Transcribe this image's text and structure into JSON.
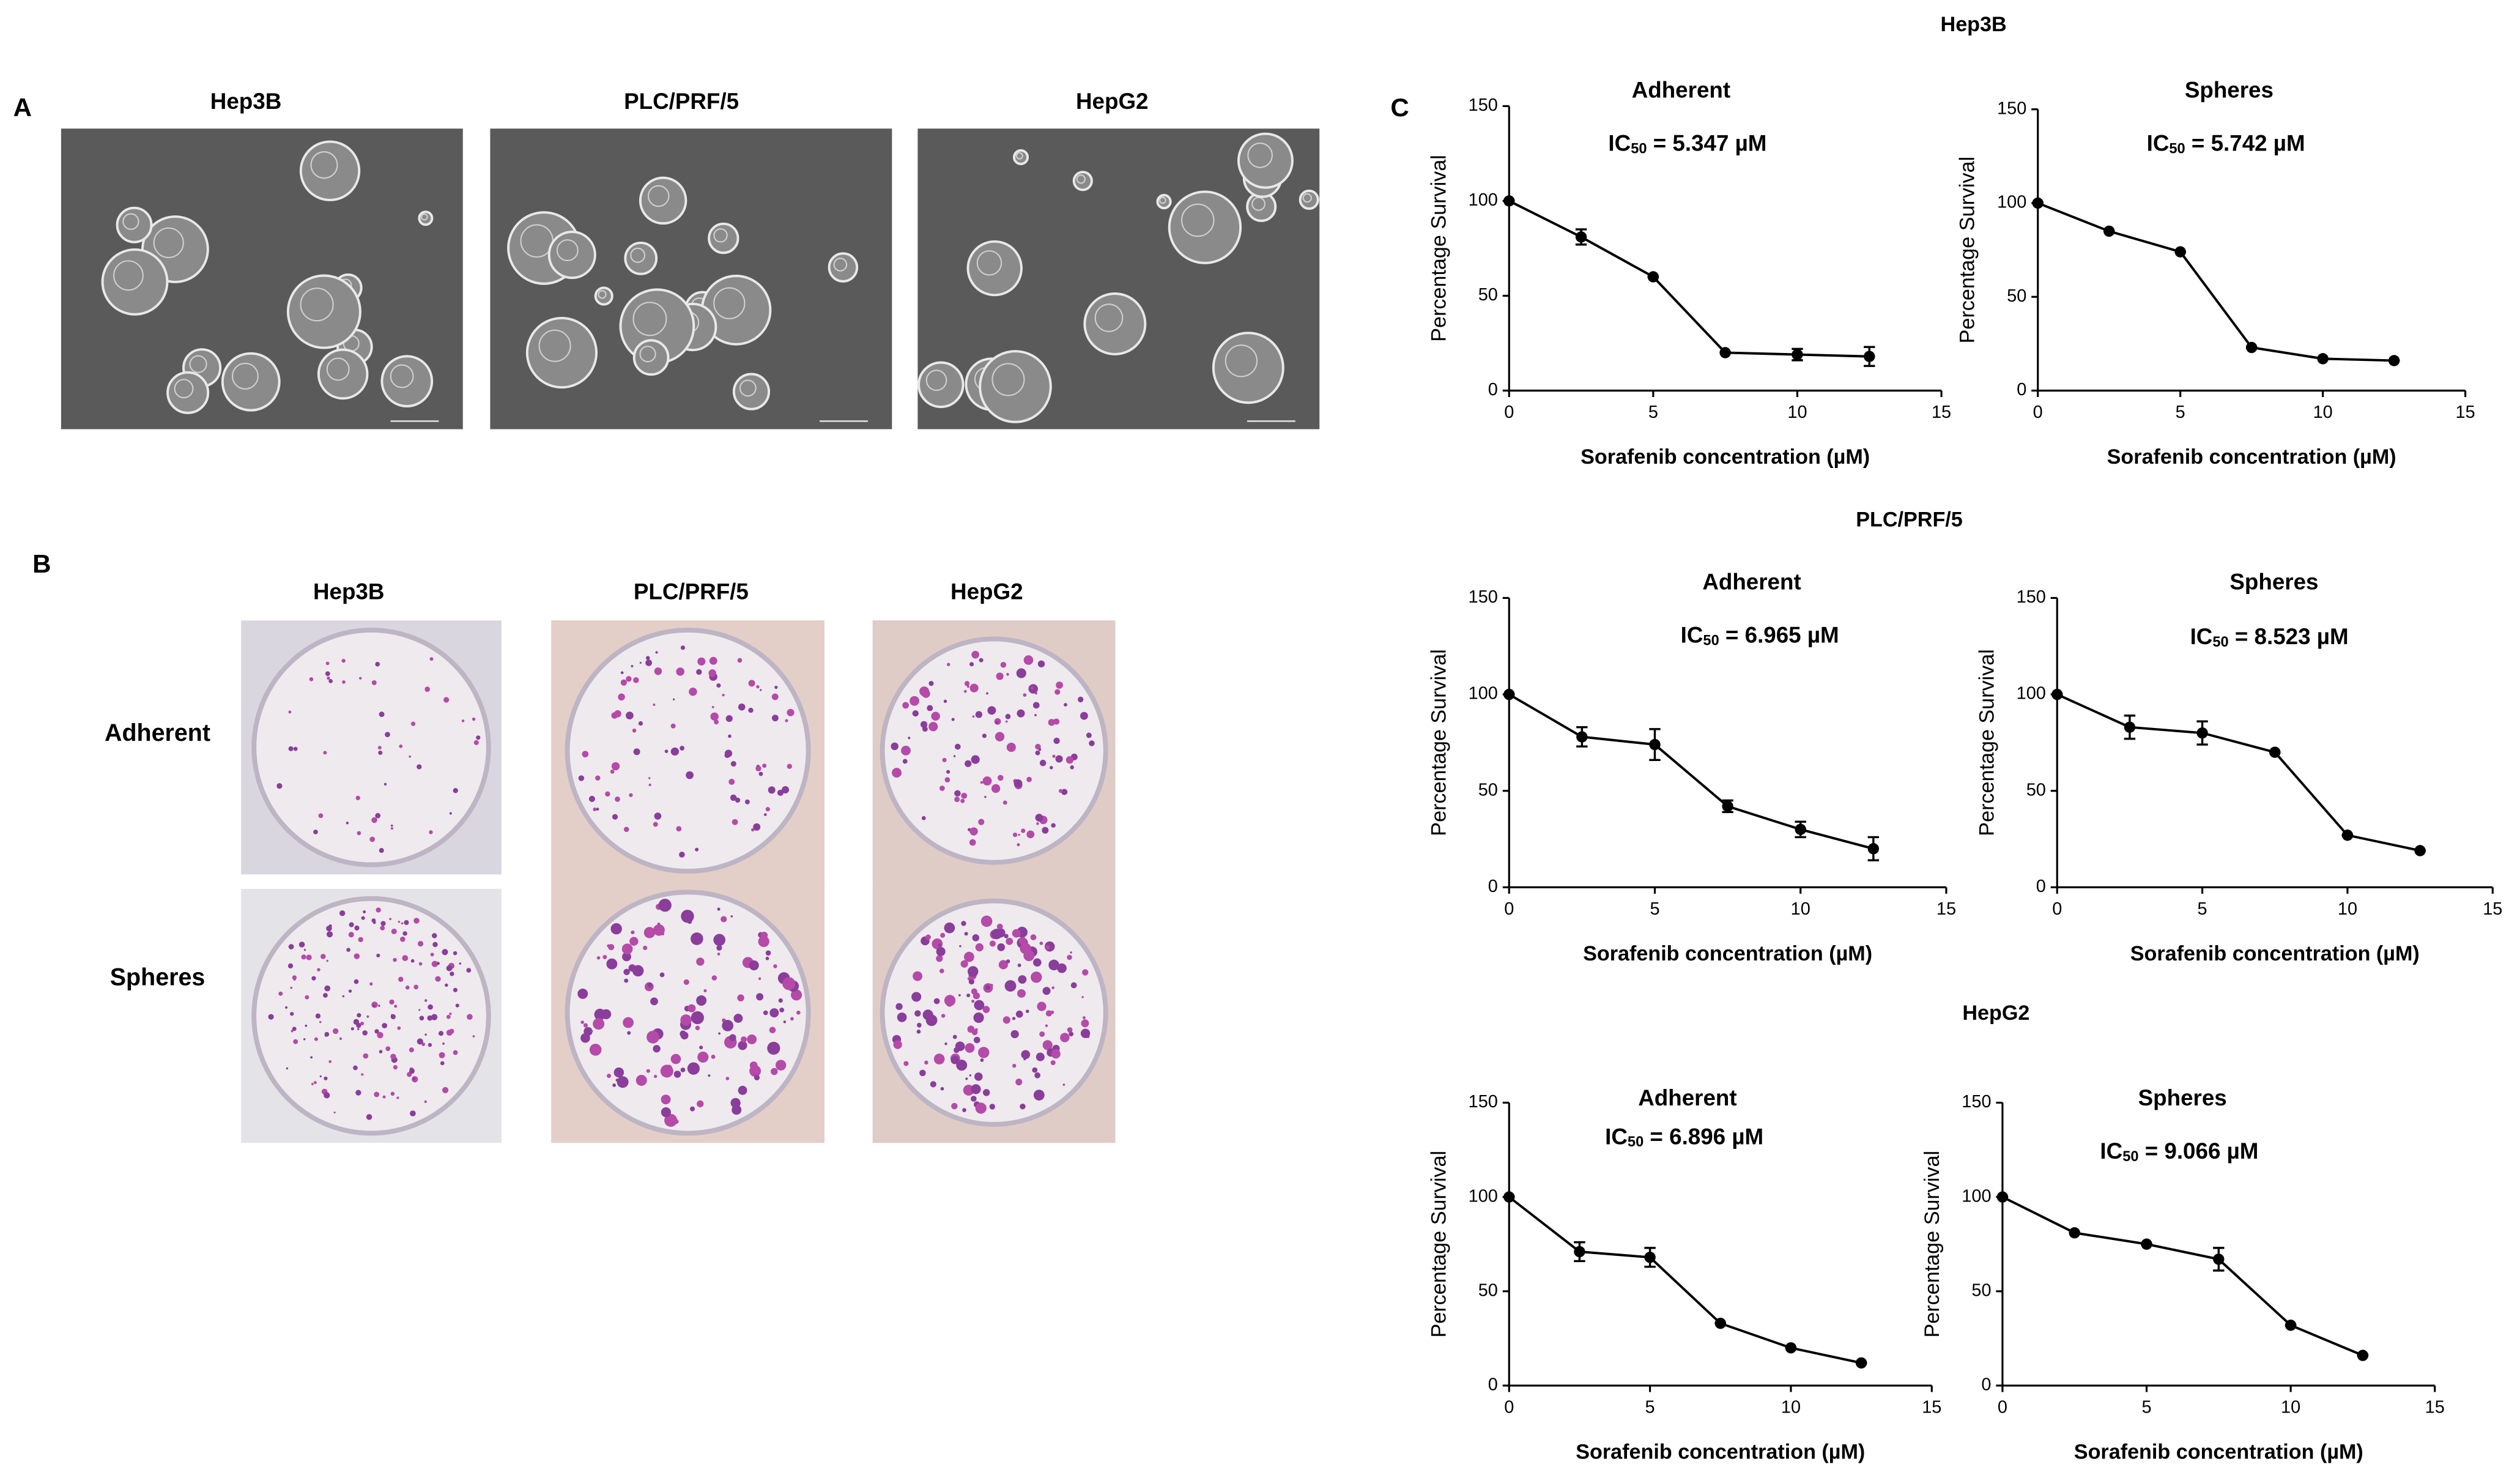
{
  "panels": {
    "A": {
      "label": "A",
      "images": [
        "Hep3B",
        "PLC/PRF/5",
        "HepG2"
      ]
    },
    "B": {
      "label": "B",
      "columns": [
        "Hep3B",
        "PLC/PRF/5",
        "HepG2"
      ],
      "rows": [
        "Adherent",
        "Spheres"
      ]
    },
    "C": {
      "label": "C",
      "groups": [
        "Hep3B",
        "PLC/PRF/5",
        "HepG2"
      ]
    }
  },
  "chart_data": [
    {
      "type": "line",
      "title": "Adherent",
      "annotation": [
        "IC",
        "50",
        " = 5.347 µM"
      ],
      "x_label": "Sorafenib concentration (µM)",
      "y_label": "Percentage Survival",
      "x": [
        0,
        2.5,
        5,
        7.5,
        10,
        12.5
      ],
      "values": [
        100,
        81,
        60,
        20,
        19,
        18
      ],
      "errors": [
        0,
        4,
        0,
        0,
        3,
        5
      ],
      "xlim": [
        0,
        15
      ],
      "xticks": [
        0,
        5,
        10,
        15
      ],
      "ylim": [
        0,
        150
      ],
      "yticks": [
        0,
        50,
        100,
        150
      ],
      "color": "#000000"
    },
    {
      "type": "line",
      "title": "Spheres",
      "annotation": [
        "IC",
        "50",
        " = 5.742 µM"
      ],
      "x_label": "Sorafenib concentration (µM)",
      "y_label": "Percentage Survival",
      "x": [
        0,
        2.5,
        5,
        7.5,
        10,
        12.5
      ],
      "values": [
        100,
        85,
        74,
        23,
        17,
        16
      ],
      "errors": [
        0,
        0,
        0,
        0,
        0,
        0
      ],
      "xlim": [
        0,
        15
      ],
      "xticks": [
        0,
        5,
        10,
        15
      ],
      "ylim": [
        0,
        150
      ],
      "yticks": [
        0,
        50,
        100,
        150
      ],
      "color": "#000000"
    },
    {
      "type": "line",
      "title": "Adherent",
      "annotation": [
        "IC",
        "50",
        " = 6.965 µM"
      ],
      "x_label": "Sorafenib concentration (µM)",
      "y_label": "Percentage Survival",
      "x": [
        0,
        2.5,
        5,
        7.5,
        10,
        12.5
      ],
      "values": [
        100,
        78,
        74,
        42,
        30,
        20
      ],
      "errors": [
        0,
        5,
        8,
        3,
        4,
        6
      ],
      "xlim": [
        0,
        15
      ],
      "xticks": [
        0,
        5,
        10,
        15
      ],
      "ylim": [
        0,
        150
      ],
      "yticks": [
        0,
        50,
        100,
        150
      ],
      "color": "#000000"
    },
    {
      "type": "line",
      "title": "Spheres",
      "annotation": [
        "IC",
        "50",
        " = 8.523 µM"
      ],
      "x_label": "Sorafenib concentration (µM)",
      "y_label": "Percentage Survival",
      "x": [
        0,
        2.5,
        5,
        7.5,
        10,
        12.5
      ],
      "values": [
        100,
        83,
        80,
        70,
        27,
        19
      ],
      "errors": [
        0,
        6,
        6,
        0,
        0,
        0
      ],
      "xlim": [
        0,
        15
      ],
      "xticks": [
        0,
        5,
        10,
        15
      ],
      "ylim": [
        0,
        150
      ],
      "yticks": [
        0,
        50,
        100,
        150
      ],
      "color": "#000000"
    },
    {
      "type": "line",
      "title": "Adherent",
      "annotation": [
        "IC",
        "50",
        " = 6.896 µM"
      ],
      "x_label": "Sorafenib concentration (µM)",
      "y_label": "Percentage Survival",
      "x": [
        0,
        2.5,
        5,
        7.5,
        10,
        12.5
      ],
      "values": [
        100,
        71,
        68,
        33,
        20,
        12
      ],
      "errors": [
        0,
        5,
        5,
        0,
        0,
        0
      ],
      "xlim": [
        0,
        15
      ],
      "xticks": [
        0,
        5,
        10,
        15
      ],
      "ylim": [
        0,
        150
      ],
      "yticks": [
        0,
        50,
        100,
        150
      ],
      "color": "#000000"
    },
    {
      "type": "line",
      "title": "Spheres",
      "annotation": [
        "IC",
        "50",
        " = 9.066 µM"
      ],
      "x_label": "Sorafenib concentration (µM)",
      "y_label": "Percentage Survival",
      "x": [
        0,
        2.5,
        5,
        7.5,
        10,
        12.5
      ],
      "values": [
        100,
        81,
        75,
        67,
        32,
        16
      ],
      "errors": [
        0,
        0,
        0,
        6,
        0,
        0
      ],
      "xlim": [
        0,
        15
      ],
      "xticks": [
        0,
        5,
        10,
        15
      ],
      "ylim": [
        0,
        150
      ],
      "yticks": [
        0,
        50,
        100,
        150
      ],
      "color": "#000000"
    }
  ]
}
